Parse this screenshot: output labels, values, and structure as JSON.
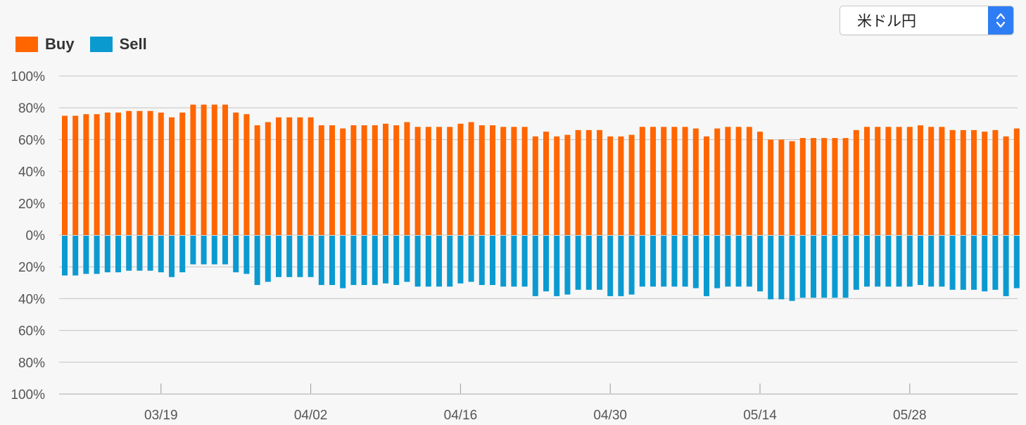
{
  "legend": {
    "buy_label": "Buy",
    "sell_label": "Sell"
  },
  "select": {
    "value": "米ドル円"
  },
  "colors": {
    "buy": "#ff6600",
    "sell": "#0b9ad0",
    "grid": "#c4c4c4",
    "background": "#f7f7f7"
  },
  "chart_data": {
    "type": "bar",
    "stacked": "diverging",
    "title": "",
    "xlabel": "",
    "ylabel": "",
    "y_tick_labels": [
      "100%",
      "80%",
      "60%",
      "40%",
      "20%",
      "0%",
      "20%",
      "40%",
      "60%",
      "80%",
      "100%"
    ],
    "ylim": [
      -100,
      100
    ],
    "x_tick_labels": [
      "03/19",
      "04/02",
      "04/16",
      "04/30",
      "05/14",
      "05/28"
    ],
    "x_tick_bar_index": [
      9,
      23,
      37,
      51,
      65,
      79
    ],
    "grid": true,
    "legend_position": "top-left",
    "series": [
      {
        "name": "Buy",
        "values": [
          75,
          75,
          76,
          76,
          77,
          77,
          78,
          78,
          78,
          77,
          74,
          77,
          82,
          82,
          82,
          82,
          77,
          76,
          69,
          71,
          74,
          74,
          74,
          74,
          69,
          69,
          67,
          69,
          69,
          69,
          70,
          69,
          71,
          68,
          68,
          68,
          68,
          70,
          71,
          69,
          69,
          68,
          68,
          68,
          62,
          65,
          62,
          63,
          66,
          66,
          66,
          62,
          62,
          63,
          68,
          68,
          68,
          68,
          68,
          67,
          62,
          67,
          68,
          68,
          68,
          65,
          60,
          60,
          59,
          61,
          61,
          61,
          61,
          61,
          66,
          68,
          68,
          68,
          68,
          68,
          69,
          68,
          68,
          66,
          66,
          66,
          65,
          66,
          62,
          67
        ]
      },
      {
        "name": "Sell",
        "values": [
          25,
          25,
          24,
          24,
          23,
          23,
          22,
          22,
          22,
          23,
          26,
          23,
          18,
          18,
          18,
          18,
          23,
          24,
          31,
          29,
          26,
          26,
          26,
          26,
          31,
          31,
          33,
          31,
          31,
          31,
          30,
          31,
          29,
          32,
          32,
          32,
          32,
          30,
          29,
          31,
          31,
          32,
          32,
          32,
          38,
          35,
          38,
          37,
          34,
          34,
          34,
          38,
          38,
          37,
          32,
          32,
          32,
          32,
          32,
          33,
          38,
          33,
          32,
          32,
          32,
          35,
          40,
          40,
          41,
          39,
          39,
          39,
          39,
          39,
          34,
          32,
          32,
          32,
          32,
          32,
          31,
          32,
          32,
          34,
          34,
          34,
          35,
          34,
          38,
          33
        ]
      }
    ]
  }
}
